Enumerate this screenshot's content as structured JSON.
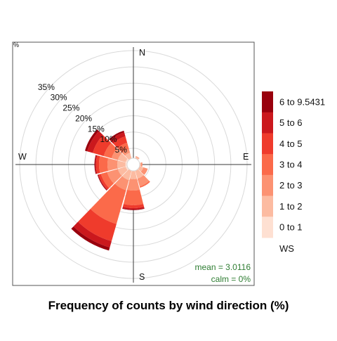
{
  "chart_data": {
    "type": "windrose",
    "title": "Frequency of counts by wind direction (%)",
    "axis_unit_label": "%",
    "radial_ticks": [
      "5%",
      "10%",
      "15%",
      "20%",
      "25%",
      "30%",
      "35%"
    ],
    "radial_tick_values": [
      5,
      10,
      15,
      20,
      25,
      30,
      35
    ],
    "radial_max": 35,
    "directions": [
      "N",
      "E",
      "S",
      "W"
    ],
    "sector_width_deg": 30,
    "bins": [
      "0 to 1",
      "1 to 2",
      "2 to 3",
      "3 to 4",
      "4 to 5",
      "5 to 6",
      "6 to 9.5431"
    ],
    "bin_colors": [
      "#fee0d2",
      "#fcbba1",
      "#fc9272",
      "#fb6a4a",
      "#ef3b2c",
      "#cb181d",
      "#99000d"
    ],
    "sectors": [
      {
        "angle": 0,
        "cumulative": [
          1.5,
          1.8,
          1.8,
          1.8,
          1.8,
          1.8,
          1.8
        ]
      },
      {
        "angle": 30,
        "cumulative": [
          1.4,
          2.5,
          2.7,
          2.7,
          2.7,
          2.7,
          2.7
        ]
      },
      {
        "angle": 60,
        "cumulative": [
          1.3,
          2.0,
          2.0,
          2.0,
          2.0,
          2.0,
          2.0
        ]
      },
      {
        "angle": 90,
        "cumulative": [
          1.5,
          2.4,
          2.8,
          2.8,
          2.8,
          2.8,
          2.8
        ]
      },
      {
        "angle": 120,
        "cumulative": [
          1.8,
          3.2,
          4.6,
          4.6,
          4.6,
          4.6,
          4.6
        ]
      },
      {
        "angle": 150,
        "cumulative": [
          2.0,
          4.5,
          7.0,
          7.4,
          7.4,
          7.4,
          7.4
        ]
      },
      {
        "angle": 180,
        "cumulative": [
          2.0,
          4.5,
          8.0,
          12.5,
          13.4,
          13.8,
          14.0
        ]
      },
      {
        "angle": 210,
        "cumulative": [
          2.0,
          5.0,
          8.2,
          19.0,
          24.5,
          26.5,
          27.5
        ]
      },
      {
        "angle": 240,
        "cumulative": [
          2.5,
          5.0,
          8.4,
          10.4,
          11.1,
          11.3,
          11.5
        ]
      },
      {
        "angle": 270,
        "cumulative": [
          2.5,
          5.0,
          8.0,
          10.6,
          11.5,
          11.8,
          12.0
        ]
      },
      {
        "angle": 300,
        "cumulative": [
          2.5,
          5.0,
          7.0,
          9.5,
          13.0,
          14.8,
          15.5
        ]
      },
      {
        "angle": 330,
        "cumulative": [
          2.0,
          3.8,
          5.0,
          7.0,
          9.0,
          10.3,
          10.8
        ]
      }
    ],
    "legend_title": "WS",
    "mean_label": "mean = 3.0116",
    "calm_label": "calm = 0%",
    "colors": {
      "axis": "#3a3a3a",
      "grid": "#d9d9d9",
      "stats": "#2e7d32",
      "border": "#555555"
    }
  }
}
